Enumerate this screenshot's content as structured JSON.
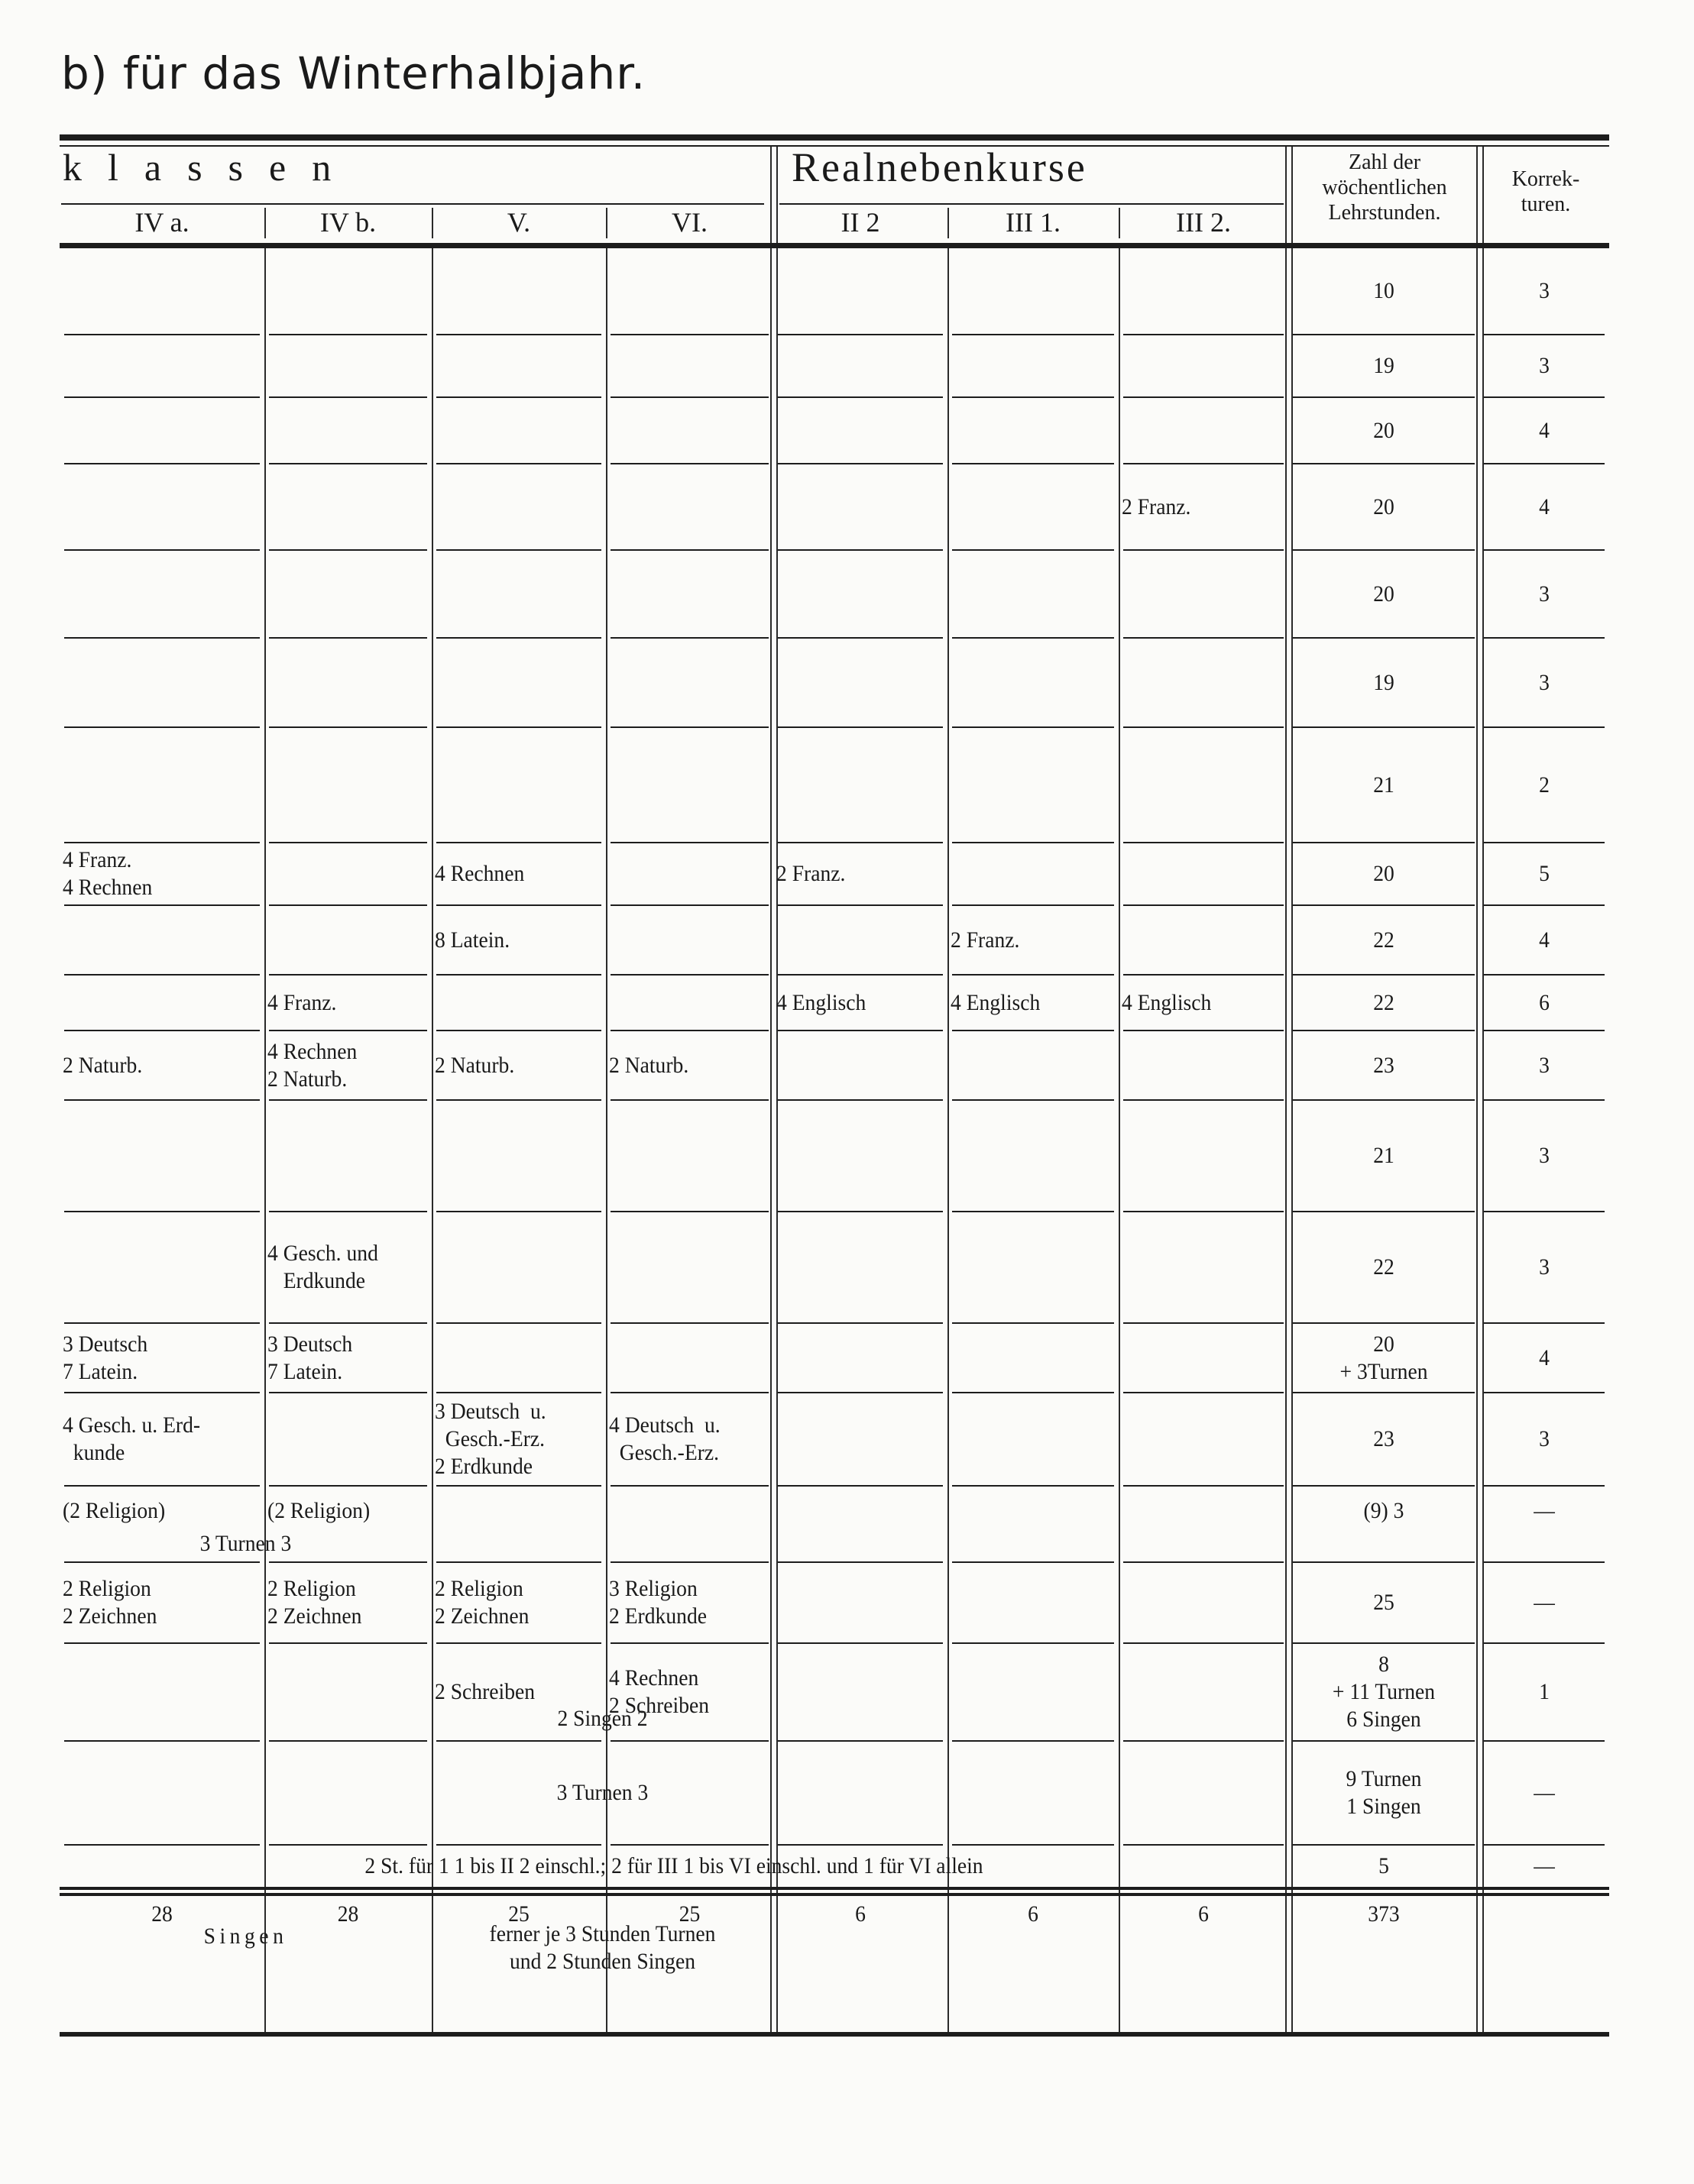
{
  "title": "b) für das Winterhalbjahr.",
  "header": {
    "klassen": "klassen",
    "realnebenkurse": "Realnebenkurse",
    "zahl": [
      "Zahl der",
      "wöchentlichen",
      "Lehrstunden."
    ],
    "korrekturen": [
      "Korrek-",
      "turen."
    ],
    "columns": [
      "IV a.",
      "IV b.",
      "V.",
      "VI.",
      "II 2",
      "III 1.",
      "III 2."
    ]
  },
  "column_keys": [
    "IVa",
    "IVb",
    "V",
    "VI",
    "II2",
    "III1",
    "III2",
    "zahl",
    "korr"
  ],
  "rows": [
    {
      "cells": {
        "zahl": [
          "10"
        ],
        "korr": [
          "3"
        ]
      }
    },
    {
      "cells": {
        "zahl": [
          "19"
        ],
        "korr": [
          "3"
        ]
      }
    },
    {
      "cells": {
        "zahl": [
          "20"
        ],
        "korr": [
          "4"
        ]
      }
    },
    {
      "cells": {
        "III2": [
          "2 Franz."
        ],
        "zahl": [
          "20"
        ],
        "korr": [
          "4"
        ]
      }
    },
    {
      "cells": {
        "zahl": [
          "20"
        ],
        "korr": [
          "3"
        ]
      }
    },
    {
      "cells": {
        "zahl": [
          "19"
        ],
        "korr": [
          "3"
        ]
      }
    },
    {
      "cells": {
        "zahl": [
          "21"
        ],
        "korr": [
          "2"
        ]
      }
    },
    {
      "cells": {
        "IVa": [
          "4 Franz.",
          "4 Rechnen"
        ],
        "V": [
          "4 Rechnen"
        ],
        "II2": [
          "2 Franz."
        ],
        "zahl": [
          "20"
        ],
        "korr": [
          "5"
        ]
      }
    },
    {
      "cells": {
        "V": [
          "8 Latein."
        ],
        "III1": [
          "2 Franz."
        ],
        "zahl": [
          "22"
        ],
        "korr": [
          "4"
        ]
      }
    },
    {
      "cells": {
        "IVb": [
          "4 Franz."
        ],
        "II2": [
          "4 Englisch"
        ],
        "III1": [
          "4 Englisch"
        ],
        "III2": [
          "4 Englisch"
        ],
        "zahl": [
          "22"
        ],
        "korr": [
          "6"
        ]
      }
    },
    {
      "cells": {
        "IVa": [
          "2 Naturb."
        ],
        "IVb": [
          "4 Rechnen",
          "2 Naturb."
        ],
        "V": [
          "2 Naturb."
        ],
        "VI": [
          "2 Naturb."
        ],
        "zahl": [
          "23"
        ],
        "korr": [
          "3"
        ]
      }
    },
    {
      "cells": {
        "zahl": [
          "21"
        ],
        "korr": [
          "3"
        ]
      }
    },
    {
      "cells": {
        "IVb": [
          "4 Gesch. und",
          "   Erdkunde"
        ],
        "zahl": [
          "22"
        ],
        "korr": [
          "3"
        ]
      }
    },
    {
      "cells": {
        "IVa": [
          "3 Deutsch",
          "7 Latein."
        ],
        "IVb": [
          "3 Deutsch",
          "7 Latein."
        ],
        "zahl": [
          "20",
          "+ 3Turnen"
        ],
        "korr": [
          "4"
        ]
      }
    },
    {
      "cells": {
        "IVa": [
          "4 Gesch. u. Erd-",
          "  kunde"
        ],
        "V": [
          "3 Deutsch  u.",
          "  Gesch.-Erz.",
          "2 Erdkunde"
        ],
        "VI": [
          "4 Deutsch  u.",
          "  Gesch.-Erz."
        ],
        "zahl": [
          "23"
        ],
        "korr": [
          "3"
        ]
      }
    },
    {
      "cells": {
        "IVa": [
          "(2 Religion)"
        ],
        "IVb": [
          "(2 Religion)"
        ],
        "zahl": [
          "(9) 3"
        ],
        "korr": [
          "—"
        ]
      },
      "span": {
        "from": "IVa",
        "to": "IVb",
        "text": "3 Turnen 3"
      }
    },
    {
      "cells": {
        "IVa": [
          "2 Religion",
          "2 Zeichnen"
        ],
        "IVb": [
          "2 Religion",
          "2 Zeichnen"
        ],
        "V": [
          "2 Religion",
          "2 Zeichnen"
        ],
        "VI": [
          "3 Religion",
          "2 Erdkunde"
        ],
        "zahl": [
          "25"
        ],
        "korr": [
          "—"
        ]
      }
    },
    {
      "cells": {
        "V": [
          "2 Schreiben"
        ],
        "VI": [
          "4 Rechnen",
          "2 Schreiben"
        ],
        "zahl": [
          "8",
          "+ 11 Turnen",
          "6 Singen"
        ],
        "korr": [
          "1"
        ]
      },
      "span": {
        "from": "V",
        "to": "VI",
        "text": "2 Singen 2"
      }
    },
    {
      "cells": {
        "zahl": [
          "9 Turnen",
          "1 Singen"
        ],
        "korr": [
          "—"
        ]
      },
      "span": {
        "from": "V",
        "to": "VI",
        "text": "3 Turnen 3"
      }
    },
    {
      "cells": {
        "zahl": [
          "5"
        ],
        "korr": [
          "—"
        ]
      },
      "span": {
        "from": "IVa",
        "to": "III2",
        "text": "2 St. für 1 1 bis II 2 einschl.; 2 für III 1 bis VI einschl. und 1 für VI allein"
      }
    }
  ],
  "totals": {
    "IVa": "28",
    "IVb": "28",
    "V": "25",
    "VI": "25",
    "II2": "6",
    "III1": "6",
    "III2": "6",
    "zahl": "373"
  },
  "footer": {
    "singen": "Singen",
    "ferner": [
      "ferner je 3 Stunden Turnen",
      "und 2 Stunden Singen"
    ]
  }
}
